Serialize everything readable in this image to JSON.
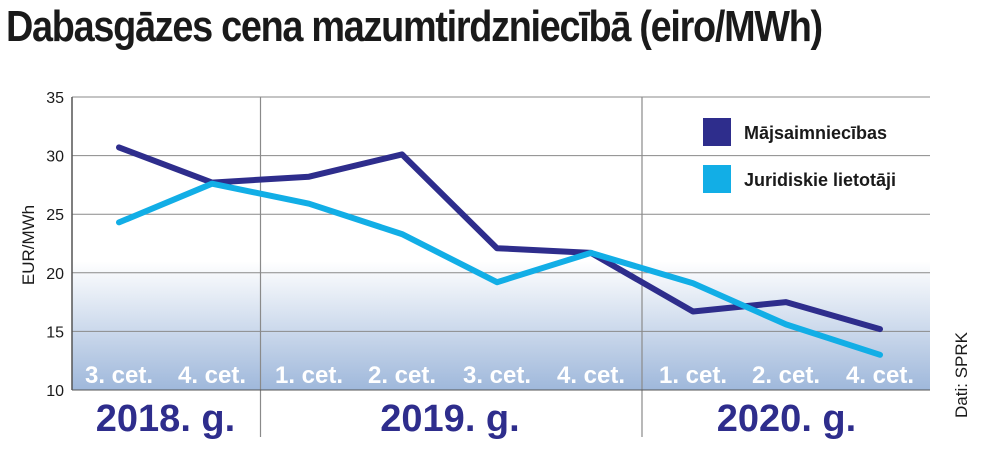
{
  "title": "Dabasgāzes cena mazumtirdzniecībā (eiro/MWh)",
  "source": "Dati: SPRK",
  "colors": {
    "series_households": "#2e2d8c",
    "series_legal": "#12aee6",
    "band_top": "#ffffff",
    "band_bottom": "#9fb8db",
    "year_text": "#2e2d8c"
  },
  "chart_data": {
    "type": "line",
    "title": "Dabasgāzes cena mazumtirdzniecībā (eiro/MWh)",
    "xlabel": "",
    "ylabel": "EUR/MWh",
    "ylim": [
      10,
      35
    ],
    "yticks": [
      10,
      15,
      20,
      25,
      30,
      35
    ],
    "grid": true,
    "legend": "top-right",
    "categories": [
      "3. cet.",
      "4. cet.",
      "1. cet.",
      "2. cet.",
      "3. cet.",
      "4. cet.",
      "1. cet.",
      "2. cet.",
      "4. cet."
    ],
    "year_groups": [
      {
        "label": "2018. g.",
        "count": 2
      },
      {
        "label": "2019. g.",
        "count": 4
      },
      {
        "label": "2020. g.",
        "count": 3
      }
    ],
    "series": [
      {
        "name": "Mājsaimniecības",
        "values": [
          30.7,
          27.7,
          28.2,
          30.1,
          22.1,
          21.7,
          16.7,
          17.5,
          15.2
        ]
      },
      {
        "name": "Juridiskie lietotāji",
        "values": [
          24.3,
          27.6,
          25.9,
          23.3,
          19.2,
          21.7,
          19.1,
          15.6,
          13.0
        ]
      }
    ]
  }
}
